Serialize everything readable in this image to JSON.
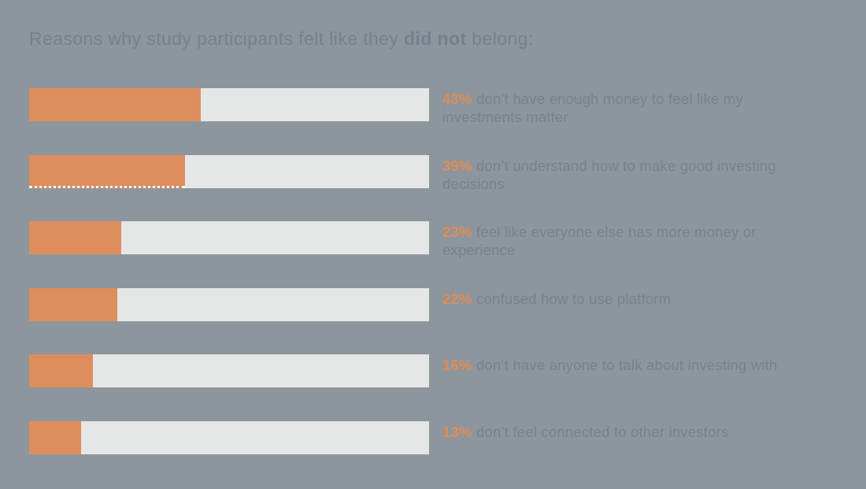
{
  "title": {
    "part1": "Reasons why study participants felt like they ",
    "bold": "did not",
    "part2": " belong:"
  },
  "rows": [
    {
      "pct": "43%",
      "line1": "don’t have enough money to feel like my",
      "line2": "investments matter"
    },
    {
      "pct": "39%",
      "line1": "don’t understand how to make good investing",
      "line2": "decisions"
    },
    {
      "pct": "23%",
      "line1": "feel like everyone else has more money or",
      "line2": "experience"
    },
    {
      "pct": "22%",
      "line1": "confused how to use platform"
    },
    {
      "pct": "16%",
      "line1": "don’t have anyone to talk about investing with"
    },
    {
      "pct": "13%",
      "line1": "don’t feel connected to other investors"
    }
  ],
  "chart_data": {
    "type": "bar",
    "orientation": "horizontal",
    "title": "Reasons why study participants felt like they did not belong:",
    "categories": [
      "don’t have enough money to feel like my investments matter",
      "don’t understand how to make good investing decisions",
      "feel like everyone else has more money or experience",
      "confused how to use platform",
      "don’t have anyone to talk about investing with",
      "don’t feel connected to other investors"
    ],
    "values": [
      43,
      39,
      23,
      22,
      16,
      13
    ],
    "unit": "%",
    "xlim": [
      0,
      100
    ],
    "grid": false,
    "legend": false,
    "data_labels_position": "right-of-bar",
    "bar_color": "#dd8e5c",
    "track_color": "#e5e6e6",
    "background_color": "#8d959d",
    "text_color": "#76828e",
    "accent_color": "#df8c53"
  }
}
